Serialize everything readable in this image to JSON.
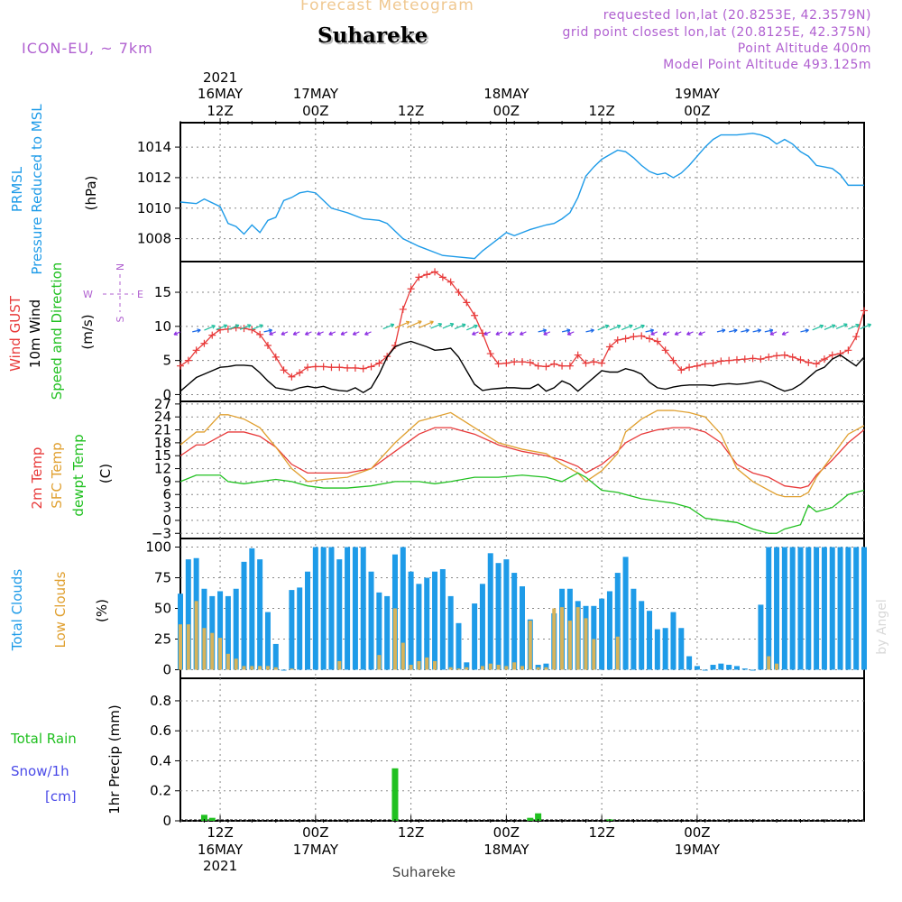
{
  "header": {
    "subtitle": "Forecast Meteogram",
    "title": "Suhareke",
    "model": "ICON-EU, ~ 7km",
    "requested": "requested lon,lat (20.8253E, 42.3579N)",
    "grid_point": "grid point closest lon,lat (20.8125E, 42.375N)",
    "point_altitude": "Point Altitude 400m",
    "model_altitude": "Model Point Altitude 493.125m",
    "bottom_label": "Suhareke",
    "credit": "by Angel"
  },
  "colors": {
    "pressure": "#1e9be8",
    "gust": "#e83a3a",
    "wind": "#000000",
    "temp2m": "#e83a3a",
    "sfc": "#e0a030",
    "dewpt": "#20c020",
    "total_clouds": "#1e9be8",
    "low_clouds": "#d7b35a",
    "rain": "#20c020",
    "snow": "#4a4ae8",
    "header_purple": "#b060d0",
    "header_orange": "#f0c890",
    "axis_label": "#1e9be8"
  },
  "time_axis": {
    "top": [
      {
        "label": "12Z",
        "date": "16MAY",
        "year": "2021"
      },
      {
        "label": "00Z",
        "date": "17MAY",
        "year": ""
      },
      {
        "label": "12Z",
        "date": "",
        "year": ""
      },
      {
        "label": "00Z",
        "date": "18MAY",
        "year": ""
      },
      {
        "label": "12Z",
        "date": "",
        "year": ""
      },
      {
        "label": "00Z",
        "date": "19MAY",
        "year": ""
      }
    ],
    "bottom": [
      {
        "label": "12Z",
        "date": "16MAY",
        "year": "2021"
      },
      {
        "label": "00Z",
        "date": "17MAY",
        "year": ""
      },
      {
        "label": "12Z",
        "date": "",
        "year": ""
      },
      {
        "label": "00Z",
        "date": "18MAY",
        "year": ""
      },
      {
        "label": "12Z",
        "date": "",
        "year": ""
      },
      {
        "label": "00Z",
        "date": "19MAY",
        "year": ""
      }
    ]
  },
  "panels": {
    "pressure": {
      "label1": "PRMSL",
      "label2": "Pressure Reduced to MSL",
      "unit": "(hPa)"
    },
    "wind": {
      "label_gust": "Wind GUST",
      "label_wind": "10m Wind",
      "label_dir": "Speed and Direction",
      "unit": "(m/s)",
      "compass_n": "N",
      "compass_s": "S",
      "compass_w": "W",
      "compass_e": "E"
    },
    "temp": {
      "label_2m": "2m Temp",
      "label_sfc": "SFC Temp",
      "label_dew": "dewpt Temp",
      "unit": "(C)"
    },
    "clouds": {
      "label_total": "Total Clouds",
      "label_low": "Low Clouds",
      "unit": "(%)"
    },
    "precip": {
      "label_rain": "Total Rain",
      "label_snow": "Snow/1h",
      "label_cm": "[cm]",
      "unit": "1hr Precip (mm)"
    }
  },
  "chart_data": [
    {
      "type": "line",
      "title": "PRMSL Pressure Reduced to MSL",
      "ylabel": "(hPa)",
      "ylim": [
        1006.5,
        1015.6
      ],
      "yticks": [
        1008,
        1010,
        1012,
        1014
      ],
      "x_hours": [
        0,
        2,
        3,
        5,
        6,
        7,
        8,
        9,
        10,
        11,
        12,
        13,
        14,
        15,
        16,
        17,
        19,
        21,
        23,
        25,
        26,
        28,
        30,
        33,
        35,
        37,
        38,
        39,
        41,
        42,
        44,
        46,
        47,
        48,
        49,
        50,
        51,
        52,
        53,
        54,
        55,
        56,
        57,
        58,
        59,
        60,
        61,
        62,
        63,
        64,
        66,
        67,
        68,
        69,
        70,
        72,
        73,
        74,
        75,
        76,
        77,
        78,
        79,
        80,
        81,
        82,
        83,
        84,
        86
      ],
      "series": [
        {
          "name": "PRMSL",
          "values": [
            1010.4,
            1010.3,
            1010.6,
            1010.1,
            1009.0,
            1008.8,
            1008.3,
            1008.9,
            1008.4,
            1009.2,
            1009.4,
            1010.5,
            1010.7,
            1011.0,
            1011.1,
            1011.0,
            1010.0,
            1009.7,
            1009.3,
            1009.2,
            1009.0,
            1008.0,
            1007.5,
            1006.9,
            1006.8,
            1006.7,
            1007.2,
            1007.6,
            1008.4,
            1008.2,
            1008.6,
            1008.9,
            1009.0,
            1009.3,
            1009.7,
            1010.7,
            1012.1,
            1012.7,
            1013.2,
            1013.5,
            1013.8,
            1013.7,
            1013.3,
            1012.8,
            1012.4,
            1012.2,
            1012.3,
            1012.0,
            1012.3,
            1012.8,
            1014.0,
            1014.5,
            1014.8,
            1014.8,
            1014.8,
            1014.9,
            1014.8,
            1014.6,
            1014.2,
            1014.5,
            1014.2,
            1013.7,
            1013.4,
            1012.8,
            1012.7,
            1012.6,
            1012.2,
            1011.5,
            1011.5
          ]
        }
      ]
    },
    {
      "type": "line",
      "title": "Wind GUST / 10m Wind Speed and Direction",
      "ylabel": "(m/s)",
      "ylim": [
        -1,
        19.5
      ],
      "yticks": [
        0,
        5,
        10,
        15
      ],
      "x_hours": [
        0,
        1,
        2,
        3,
        4,
        5,
        6,
        7,
        8,
        9,
        10,
        11,
        12,
        13,
        14,
        15,
        16,
        17,
        18,
        19,
        20,
        21,
        22,
        23,
        24,
        25,
        26,
        27,
        28,
        29,
        30,
        31,
        32,
        33,
        34,
        35,
        36,
        37,
        38,
        39,
        40,
        41,
        42,
        43,
        44,
        45,
        46,
        47,
        48,
        49,
        50,
        51,
        52,
        53,
        54,
        55,
        56,
        57,
        58,
        59,
        60,
        61,
        62,
        63,
        64,
        65,
        66,
        67,
        68,
        69,
        70,
        71,
        72,
        73,
        74,
        75,
        76,
        77,
        78,
        79,
        80,
        81,
        82,
        83,
        84,
        85,
        86
      ],
      "series": [
        {
          "name": "Wind GUST",
          "values": [
            4.2,
            5.0,
            6.5,
            7.5,
            8.7,
            9.5,
            9.6,
            9.8,
            9.7,
            9.5,
            8.8,
            7.2,
            5.5,
            3.6,
            2.6,
            3.2,
            4.0,
            4.1,
            4.1,
            4.0,
            4.0,
            3.9,
            3.9,
            3.8,
            4.1,
            4.6,
            5.6,
            7.2,
            12.5,
            15.5,
            17.2,
            17.6,
            18.0,
            17.2,
            16.5,
            15.0,
            13.5,
            11.6,
            9.0,
            6.0,
            4.5,
            4.6,
            4.8,
            4.8,
            4.7,
            4.2,
            4.1,
            4.5,
            4.2,
            4.2,
            5.8,
            4.6,
            4.8,
            4.6,
            7.0,
            8.0,
            8.2,
            8.5,
            8.6,
            8.2,
            7.8,
            6.5,
            5.0,
            3.6,
            4.0,
            4.2,
            4.5,
            4.6,
            4.9,
            5.0,
            5.1,
            5.2,
            5.3,
            5.2,
            5.5,
            5.7,
            5.8,
            5.5,
            5.1,
            4.7,
            4.5,
            5.2,
            5.8,
            6.0,
            6.5,
            8.5,
            12.3
          ]
        },
        {
          "name": "10m Wind",
          "values": [
            0.5,
            1.5,
            2.5,
            3.0,
            3.5,
            4.0,
            4.1,
            4.3,
            4.3,
            4.2,
            3.2,
            2.0,
            1.0,
            0.8,
            0.6,
            1.0,
            1.2,
            1.0,
            1.2,
            0.8,
            0.6,
            0.5,
            1.0,
            0.3,
            1.0,
            3.0,
            5.5,
            7.0,
            7.5,
            7.8,
            7.4,
            7.0,
            6.5,
            6.6,
            6.8,
            5.5,
            3.5,
            1.5,
            0.6,
            0.8,
            0.9,
            1.0,
            1.0,
            0.9,
            0.9,
            1.5,
            0.5,
            1.0,
            2.0,
            1.5,
            0.5,
            1.5,
            2.5,
            3.5,
            3.3,
            3.3,
            3.8,
            3.5,
            3.0,
            1.8,
            1.0,
            0.8,
            1.1,
            1.3,
            1.4,
            1.4,
            1.4,
            1.3,
            1.5,
            1.6,
            1.5,
            1.6,
            1.8,
            2.0,
            1.6,
            1.0,
            0.5,
            0.8,
            1.5,
            2.5,
            3.5,
            4.0,
            5.2,
            5.8,
            5.0,
            4.2,
            5.5
          ]
        }
      ]
    },
    {
      "type": "line",
      "title": "2m Temp / SFC Temp / dewpt Temp",
      "ylabel": "(C)",
      "ylim": [
        -4.2,
        27.6
      ],
      "yticks": [
        -3,
        0,
        3,
        6,
        9,
        12,
        15,
        18,
        21,
        24,
        27
      ],
      "x_hours": [
        0,
        2,
        3,
        5,
        6,
        8,
        10,
        12,
        14,
        16,
        18,
        21,
        24,
        27,
        30,
        32,
        34,
        37,
        40,
        43,
        46,
        48,
        50,
        51,
        53,
        55,
        56,
        58,
        60,
        62,
        64,
        66,
        68,
        70,
        72,
        74,
        75,
        76,
        78,
        79,
        80,
        82,
        84,
        86
      ],
      "series": [
        {
          "name": "2m Temp",
          "values": [
            15,
            17.5,
            17.5,
            19.5,
            20.5,
            20.5,
            19.5,
            17,
            13,
            11,
            11,
            11,
            12,
            16,
            20,
            21.5,
            21.5,
            20,
            17.5,
            16,
            15,
            14,
            12.5,
            11,
            13,
            16,
            18,
            20,
            21,
            21.5,
            21.5,
            20.5,
            18,
            13,
            11,
            10,
            9,
            8,
            7.5,
            8,
            10.5,
            14,
            18,
            21
          ]
        },
        {
          "name": "SFC Temp",
          "values": [
            17.5,
            20.5,
            20.5,
            24.5,
            24.5,
            23.5,
            21.5,
            17,
            12,
            9,
            9.5,
            10,
            12,
            18,
            23,
            24,
            25,
            21.5,
            18,
            16.5,
            15.5,
            13,
            11,
            9,
            11.5,
            15.5,
            20.5,
            23.5,
            25.5,
            25.5,
            25,
            24,
            20,
            12,
            9,
            7,
            6,
            5.5,
            5.5,
            6.5,
            10,
            15,
            20,
            22
          ]
        },
        {
          "name": "dewpt Temp",
          "values": [
            9,
            10.5,
            10.5,
            10.5,
            9,
            8.5,
            9,
            9.5,
            9,
            8,
            7.5,
            7.5,
            8,
            9,
            9,
            8.5,
            9,
            10,
            10,
            10.5,
            10,
            9,
            11,
            10,
            7,
            6.5,
            6,
            5,
            4.5,
            4,
            3,
            0.5,
            0,
            -0.5,
            -2,
            -3,
            -3,
            -2,
            -1,
            3.5,
            2,
            3,
            6,
            7
          ]
        }
      ]
    },
    {
      "type": "bar",
      "title": "Total Clouds / Low Clouds",
      "ylabel": "(%)",
      "ylim": [
        -7,
        107
      ],
      "yticks": [
        0,
        25,
        50,
        75,
        100
      ],
      "x_hours": [
        0,
        1,
        2,
        3,
        4,
        5,
        6,
        7,
        8,
        9,
        10,
        11,
        12,
        13,
        14,
        15,
        16,
        17,
        18,
        19,
        20,
        21,
        22,
        23,
        24,
        25,
        26,
        27,
        28,
        29,
        30,
        31,
        32,
        33,
        34,
        35,
        36,
        37,
        38,
        39,
        40,
        41,
        42,
        43,
        44,
        45,
        46,
        47,
        48,
        49,
        50,
        51,
        52,
        53,
        54,
        55,
        56,
        57,
        58,
        59,
        60,
        61,
        62,
        63,
        64,
        65,
        66,
        67,
        68,
        69,
        70,
        71,
        72,
        73,
        74,
        75,
        76,
        77,
        78,
        79,
        80,
        81,
        82,
        83,
        84,
        85,
        86
      ],
      "series": [
        {
          "name": "Total Clouds",
          "values": [
            62,
            90,
            91,
            66,
            60,
            64,
            60,
            66,
            88,
            99,
            90,
            47,
            21,
            0,
            65,
            67,
            80,
            100,
            100,
            100,
            90,
            100,
            100,
            100,
            80,
            63,
            60,
            94,
            100,
            80,
            70,
            75,
            80,
            82,
            60,
            38,
            6,
            54,
            70,
            95,
            87,
            90,
            79,
            68,
            41,
            4,
            5,
            46,
            66,
            66,
            56,
            52,
            52,
            58,
            64,
            79,
            92,
            66,
            56,
            48,
            33,
            34,
            47,
            34,
            11,
            3,
            0,
            4,
            5,
            4,
            3,
            1,
            0,
            53,
            100,
            100,
            100,
            100,
            100,
            100,
            100,
            100,
            100,
            100,
            100,
            100,
            100
          ]
        },
        {
          "name": "Low Clouds",
          "values": [
            37,
            37,
            56,
            34,
            30,
            26,
            13,
            9,
            3,
            3,
            3,
            3,
            2,
            0,
            1,
            0,
            0,
            0,
            0,
            0,
            7,
            0,
            0,
            0,
            0,
            12,
            0,
            50,
            22,
            4,
            7,
            10,
            7,
            0,
            2,
            1,
            2,
            0,
            3,
            5,
            4,
            3,
            6,
            3,
            40,
            2,
            2,
            50,
            51,
            40,
            51,
            42,
            25,
            0,
            0,
            27,
            0,
            0,
            0,
            0,
            0,
            0,
            0,
            0,
            0,
            0,
            0,
            0,
            0,
            0,
            0,
            0,
            0,
            0,
            11,
            5,
            0,
            0,
            0,
            0,
            0,
            0,
            0,
            0,
            0,
            0,
            0
          ]
        }
      ]
    },
    {
      "type": "bar",
      "title": "1hr Precip",
      "ylabel": "1hr Precip (mm)",
      "ylim": [
        0,
        0.95
      ],
      "yticks": [
        0,
        0.2,
        0.4,
        0.6,
        0.8
      ],
      "x_hours": [
        3,
        4,
        27,
        44,
        45,
        54
      ],
      "series": [
        {
          "name": "Total Rain",
          "values": [
            0.04,
            0.02,
            0.35,
            0.02,
            0.05,
            0.01
          ]
        }
      ]
    }
  ]
}
